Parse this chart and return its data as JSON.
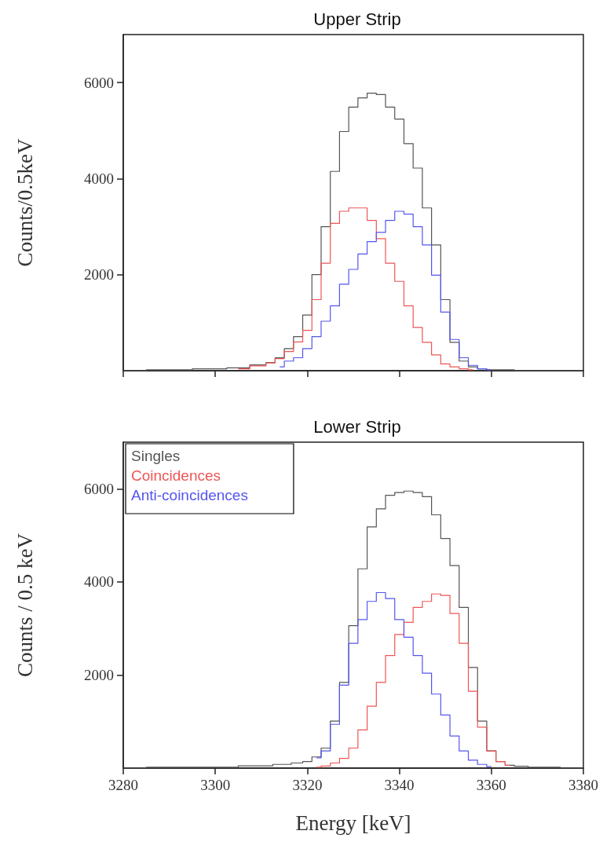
{
  "chart_data": [
    {
      "type": "step",
      "title": "Upper Strip",
      "ylabel": "Counts/0.5keV",
      "xlim": [
        3280,
        3380
      ],
      "xticks": [
        3280,
        3300,
        3320,
        3340,
        3360,
        3380
      ],
      "ylim": [
        0,
        7000
      ],
      "yticks": [
        2000,
        4000,
        6000
      ],
      "tick_labels": "y",
      "legend": false,
      "grid": false,
      "series": [
        {
          "color": "#555555",
          "x": [
            3280,
            3290,
            3300,
            3305,
            3310,
            3312,
            3314,
            3316,
            3318,
            3320,
            3322,
            3324,
            3326,
            3328,
            3330,
            3332,
            3334,
            3336,
            3338,
            3340,
            3342,
            3344,
            3346,
            3348,
            3350,
            3352,
            3354,
            3356,
            3358,
            3360,
            3370,
            3380
          ],
          "values": [
            0,
            20,
            40,
            60,
            120,
            170,
            270,
            460,
            710,
            1160,
            2000,
            3000,
            4150,
            4980,
            5490,
            5680,
            5780,
            5750,
            5490,
            5240,
            4730,
            4220,
            3390,
            2620,
            1480,
            590,
            200,
            80,
            40,
            20,
            0,
            0
          ]
        },
        {
          "color": "#ee5555",
          "x": [
            3305,
            3310,
            3312,
            3314,
            3316,
            3318,
            3320,
            3322,
            3324,
            3326,
            3328,
            3330,
            3332,
            3334,
            3336,
            3338,
            3340,
            3342,
            3344,
            3346,
            3348,
            3350,
            3352,
            3354,
            3356
          ],
          "values": [
            40,
            100,
            160,
            250,
            400,
            600,
            840,
            1480,
            2240,
            3070,
            3320,
            3390,
            3390,
            3130,
            2750,
            2240,
            1860,
            1350,
            900,
            590,
            330,
            140,
            80,
            40,
            20
          ]
        },
        {
          "color": "#5555ee",
          "x": [
            3314,
            3316,
            3318,
            3320,
            3322,
            3324,
            3326,
            3328,
            3330,
            3332,
            3334,
            3336,
            3338,
            3340,
            3342,
            3344,
            3346,
            3348,
            3350,
            3352,
            3354,
            3356,
            3358,
            3360
          ],
          "values": [
            80,
            200,
            270,
            460,
            710,
            1030,
            1350,
            1800,
            2110,
            2430,
            2690,
            2880,
            3130,
            3320,
            3260,
            3000,
            2620,
            1990,
            1220,
            650,
            270,
            110,
            40,
            20
          ]
        }
      ]
    },
    {
      "type": "step",
      "title": "Lower Strip",
      "ylabel": "Counts / 0.5 keV",
      "xlabel": "Energy [keV]",
      "xlim": [
        3280,
        3380
      ],
      "xticks": [
        3280,
        3300,
        3320,
        3340,
        3360,
        3380
      ],
      "ylim": [
        0,
        7000
      ],
      "yticks": [
        2000,
        4000,
        6000
      ],
      "legend": "top left",
      "grid": false,
      "series": [
        {
          "name": "Singles",
          "color": "#555555",
          "x": [
            3280,
            3290,
            3300,
            3310,
            3315,
            3318,
            3320,
            3322,
            3324,
            3326,
            3328,
            3330,
            3332,
            3334,
            3336,
            3338,
            3340,
            3342,
            3344,
            3346,
            3348,
            3350,
            3352,
            3354,
            3356,
            3358,
            3360,
            3362,
            3364,
            3366,
            3370,
            3380
          ],
          "values": [
            0,
            20,
            20,
            50,
            80,
            110,
            140,
            240,
            430,
            1010,
            1840,
            3060,
            4280,
            5180,
            5570,
            5860,
            5920,
            5950,
            5920,
            5830,
            5440,
            4930,
            4350,
            3450,
            2160,
            1010,
            370,
            140,
            60,
            40,
            20,
            0
          ]
        },
        {
          "name": "Coincidences",
          "color": "#ee5555",
          "x": [
            3322,
            3324,
            3326,
            3328,
            3330,
            3332,
            3334,
            3336,
            3338,
            3340,
            3342,
            3344,
            3346,
            3348,
            3350,
            3352,
            3354,
            3356,
            3358,
            3360,
            3362,
            3364
          ],
          "values": [
            20,
            45,
            110,
            210,
            430,
            820,
            1330,
            1840,
            2420,
            2870,
            3130,
            3450,
            3580,
            3740,
            3710,
            3320,
            2680,
            1650,
            880,
            370,
            140,
            60
          ]
        },
        {
          "name": "Anti-coincidences",
          "color": "#5555ee",
          "x": [
            3322,
            3324,
            3326,
            3328,
            3330,
            3332,
            3334,
            3336,
            3338,
            3340,
            3342,
            3344,
            3346,
            3348,
            3350,
            3352,
            3354,
            3356,
            3358,
            3360
          ],
          "values": [
            220,
            370,
            940,
            1780,
            2680,
            3190,
            3580,
            3770,
            3640,
            3190,
            2810,
            2420,
            2040,
            1590,
            1140,
            690,
            370,
            170,
            80,
            30
          ]
        }
      ]
    }
  ]
}
